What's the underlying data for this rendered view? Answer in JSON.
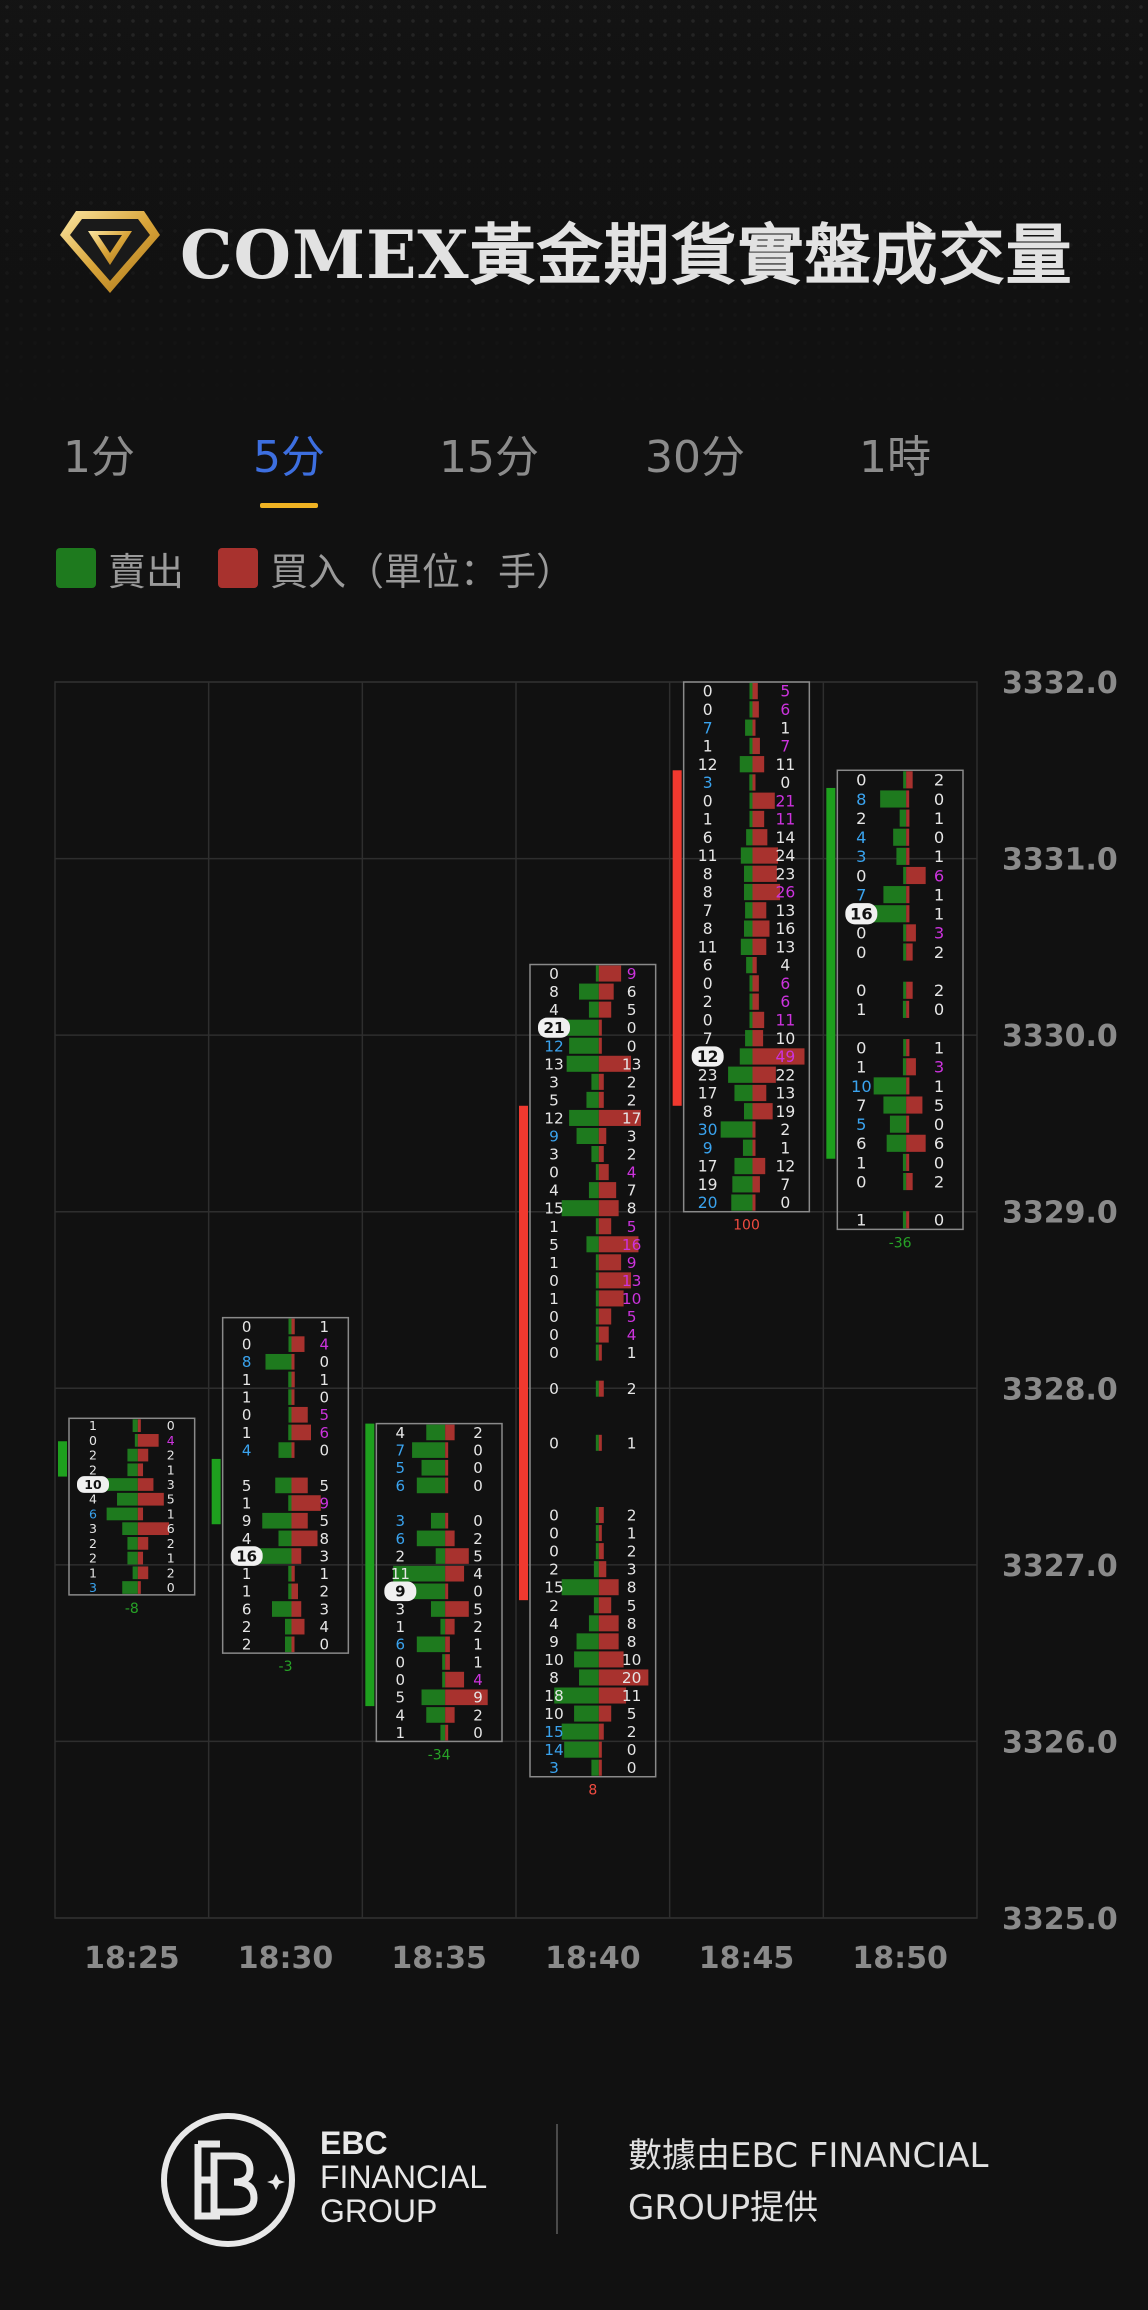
{
  "title": "COMEX黃金期貨實盤成交量",
  "tabs": [
    {
      "label": "1分",
      "active": false
    },
    {
      "label": "5分",
      "active": true
    },
    {
      "label": "15分",
      "active": false
    },
    {
      "label": "30分",
      "active": false
    },
    {
      "label": "1時",
      "active": false
    }
  ],
  "legend": {
    "sell_label": "賣出",
    "buy_label": "買入（單位：手）",
    "sell_color": "#1e7a1e",
    "buy_color": "#a8322e"
  },
  "colors": {
    "bullish_candle": "#f0392f",
    "bearish_candle": "#1ea01e",
    "grid": "#2e2e2e",
    "positive_delta": "#f04b40",
    "negative_delta": "#27a327",
    "highlight_blue": "#3aa3ee",
    "highlight_purple": "#cc33dd"
  },
  "chart_data": {
    "type": "footprint",
    "price_axis": {
      "min": 3325.0,
      "max": 3332.0,
      "step": 1.0,
      "tick_labels": [
        "3332.0",
        "3331.0",
        "3330.0",
        "3329.0",
        "3328.0",
        "3327.0",
        "3326.0",
        "3325.0"
      ]
    },
    "time_labels": [
      "18:25",
      "18:30",
      "18:35",
      "18:40",
      "18:45",
      "18:50"
    ],
    "grid": true,
    "bars": [
      {
        "time": "18:25",
        "open": 3327.7,
        "close": 3327.5,
        "high": 3327.83,
        "low": 3326.83,
        "delta": "-8",
        "poc_index": 4,
        "rows": [
          [
            "1",
            "0"
          ],
          [
            "0",
            "4"
          ],
          [
            "2",
            "2"
          ],
          [
            "2",
            "1"
          ],
          [
            "10",
            "3"
          ],
          [
            "4",
            "5"
          ],
          [
            "6",
            "1"
          ],
          [
            "3",
            "6"
          ],
          [
            "2",
            "2"
          ],
          [
            "2",
            "1"
          ],
          [
            "1",
            "2"
          ],
          [
            "3",
            "0"
          ]
        ]
      },
      {
        "time": "18:30",
        "open": 3327.6,
        "close": 3327.23,
        "high": 3328.4,
        "low": 3326.5,
        "delta": "-3",
        "poc_index": 13,
        "rows": [
          [
            "0",
            "1"
          ],
          [
            "0",
            "4"
          ],
          [
            "8",
            "0"
          ],
          [
            "1",
            "1"
          ],
          [
            "1",
            "0"
          ],
          [
            "0",
            "5"
          ],
          [
            "1",
            "6"
          ],
          [
            "4",
            "0"
          ],
          [
            "",
            ""
          ],
          [
            "5",
            "5"
          ],
          [
            "1",
            "9"
          ],
          [
            "9",
            "5"
          ],
          [
            "4",
            "8"
          ],
          [
            "16",
            "3"
          ],
          [
            "1",
            "1"
          ],
          [
            "1",
            "2"
          ],
          [
            "6",
            "3"
          ],
          [
            "2",
            "4"
          ],
          [
            "2",
            "0"
          ]
        ]
      },
      {
        "time": "18:35",
        "open": 3327.8,
        "close": 3326.2,
        "high": 3327.8,
        "low": 3326.0,
        "delta": "-34",
        "poc_index": 9,
        "rows": [
          [
            "4",
            "2"
          ],
          [
            "7",
            "0"
          ],
          [
            "5",
            "0"
          ],
          [
            "6",
            "0"
          ],
          [
            "",
            ""
          ],
          [
            "3",
            "0"
          ],
          [
            "6",
            "2"
          ],
          [
            "2",
            "5"
          ],
          [
            "11",
            "4"
          ],
          [
            "9",
            "0"
          ],
          [
            "3",
            "5"
          ],
          [
            "1",
            "2"
          ],
          [
            "6",
            "1"
          ],
          [
            "0",
            "1"
          ],
          [
            "0",
            "4"
          ],
          [
            "5",
            "9"
          ],
          [
            "4",
            "2"
          ],
          [
            "1",
            "0"
          ]
        ]
      },
      {
        "time": "18:40",
        "open": 3326.8,
        "close": 3329.6,
        "high": 3330.4,
        "low": 3325.8,
        "delta": "8",
        "poc_index": 3,
        "rows": [
          [
            "0",
            "9"
          ],
          [
            "8",
            "6"
          ],
          [
            "4",
            "5"
          ],
          [
            "21",
            "0"
          ],
          [
            "12",
            "0"
          ],
          [
            "13",
            "13"
          ],
          [
            "3",
            "2"
          ],
          [
            "5",
            "2"
          ],
          [
            "12",
            "17"
          ],
          [
            "9",
            "3"
          ],
          [
            "3",
            "2"
          ],
          [
            "0",
            "4"
          ],
          [
            "4",
            "7"
          ],
          [
            "15",
            "8"
          ],
          [
            "1",
            "5"
          ],
          [
            "5",
            "16"
          ],
          [
            "1",
            "9"
          ],
          [
            "0",
            "13"
          ],
          [
            "1",
            "10"
          ],
          [
            "0",
            "5"
          ],
          [
            "0",
            "4"
          ],
          [
            "0",
            "1"
          ],
          [
            "",
            ""
          ],
          [
            "0",
            "2"
          ],
          [
            "",
            ""
          ],
          [
            "",
            ""
          ],
          [
            "0",
            "1"
          ],
          [
            "",
            ""
          ],
          [
            "",
            ""
          ],
          [
            "",
            ""
          ],
          [
            "0",
            "2"
          ],
          [
            "0",
            "1"
          ],
          [
            "0",
            "2"
          ],
          [
            "2",
            "3"
          ],
          [
            "15",
            "8"
          ],
          [
            "2",
            "5"
          ],
          [
            "4",
            "8"
          ],
          [
            "9",
            "8"
          ],
          [
            "10",
            "10"
          ],
          [
            "8",
            "20"
          ],
          [
            "18",
            "11"
          ],
          [
            "10",
            "5"
          ],
          [
            "15",
            "2"
          ],
          [
            "14",
            "0"
          ],
          [
            "3",
            "0"
          ]
        ]
      },
      {
        "time": "18:45",
        "open": 3329.6,
        "close": 3331.5,
        "high": 3332.0,
        "low": 3329.0,
        "delta": "100",
        "poc_index": 20,
        "rows": [
          [
            "0",
            "5"
          ],
          [
            "0",
            "6"
          ],
          [
            "7",
            "1"
          ],
          [
            "1",
            "7"
          ],
          [
            "12",
            "11"
          ],
          [
            "3",
            "0"
          ],
          [
            "0",
            "21"
          ],
          [
            "1",
            "11"
          ],
          [
            "6",
            "14"
          ],
          [
            "11",
            "24"
          ],
          [
            "8",
            "23"
          ],
          [
            "8",
            "26"
          ],
          [
            "7",
            "13"
          ],
          [
            "8",
            "16"
          ],
          [
            "11",
            "13"
          ],
          [
            "6",
            "4"
          ],
          [
            "0",
            "6"
          ],
          [
            "2",
            "6"
          ],
          [
            "0",
            "11"
          ],
          [
            "7",
            "10"
          ],
          [
            "12",
            "49"
          ],
          [
            "23",
            "22"
          ],
          [
            "17",
            "13"
          ],
          [
            "8",
            "19"
          ],
          [
            "30",
            "2"
          ],
          [
            "9",
            "1"
          ],
          [
            "17",
            "12"
          ],
          [
            "19",
            "7"
          ],
          [
            "20",
            "0"
          ]
        ]
      },
      {
        "time": "18:50",
        "open": 3331.4,
        "close": 3329.3,
        "high": 3331.5,
        "low": 3328.9,
        "delta": "-36",
        "poc_index": 7,
        "rows": [
          [
            "0",
            "2"
          ],
          [
            "8",
            "0"
          ],
          [
            "2",
            "1"
          ],
          [
            "4",
            "0"
          ],
          [
            "3",
            "1"
          ],
          [
            "0",
            "6"
          ],
          [
            "7",
            "1"
          ],
          [
            "16",
            "1"
          ],
          [
            "0",
            "3"
          ],
          [
            "0",
            "2"
          ],
          [
            "",
            ""
          ],
          [
            "0",
            "2"
          ],
          [
            "1",
            "0"
          ],
          [
            "",
            ""
          ],
          [
            "0",
            "1"
          ],
          [
            "1",
            "3"
          ],
          [
            "10",
            "1"
          ],
          [
            "7",
            "5"
          ],
          [
            "5",
            "0"
          ],
          [
            "6",
            "6"
          ],
          [
            "1",
            "0"
          ],
          [
            "0",
            "2"
          ],
          [
            "",
            ""
          ],
          [
            "1",
            "0"
          ]
        ]
      }
    ]
  },
  "footer": {
    "brand_line1": "EBC",
    "brand_line2": "FINANCIAL",
    "brand_line3": "GROUP",
    "credit": "數據由EBC FINANCIAL GROUP提供"
  }
}
